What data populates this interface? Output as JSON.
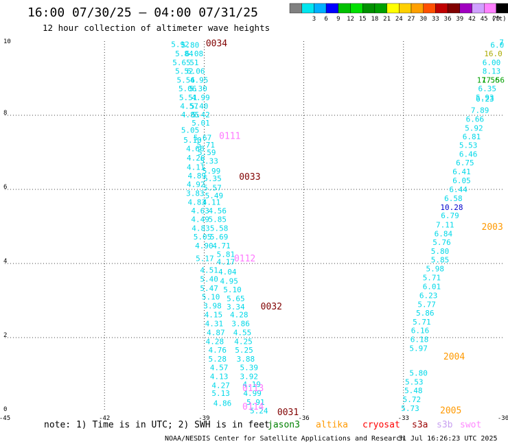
{
  "header": {
    "title": "16:00 07/30/25 — 04:00 07/31/25",
    "subtitle": "12 hour collection of altimeter wave heights"
  },
  "colorbar": {
    "unit": "(ft)",
    "swatches": [
      {
        "label": "",
        "color": "#808080"
      },
      {
        "label": "3",
        "color": "#00e5ee"
      },
      {
        "label": "6",
        "color": "#00b0ff"
      },
      {
        "label": "9",
        "color": "#0000ff"
      },
      {
        "label": "12",
        "color": "#00c000"
      },
      {
        "label": "15",
        "color": "#00e000"
      },
      {
        "label": "18",
        "color": "#009000"
      },
      {
        "label": "21",
        "color": "#00a000"
      },
      {
        "label": "24",
        "color": "#ffff00"
      },
      {
        "label": "27",
        "color": "#ffd000"
      },
      {
        "label": "30",
        "color": "#ffa000"
      },
      {
        "label": "33",
        "color": "#ff5000"
      },
      {
        "label": "36",
        "color": "#c00000"
      },
      {
        "label": "39",
        "color": "#800000"
      },
      {
        "label": "42",
        "color": "#a000c0"
      },
      {
        "label": "45",
        "color": "#d0a0ff"
      },
      {
        "label": "70",
        "color": "#ff80ff"
      },
      {
        "label": "",
        "color": "#000000"
      }
    ]
  },
  "footer": {
    "note": "note: 1) Time is in UTC; 2) SWH is in feet",
    "credit": "NOAA/NESDIS Center for Satellite Applications and Research",
    "timestamp": "31 Jul 16:26:23 UTC 2025"
  },
  "legend": [
    {
      "name": "jason3",
      "color": "#008000"
    },
    {
      "name": "altika",
      "color": "#ff9900"
    },
    {
      "name": "cryosat",
      "color": "#ff0000"
    },
    {
      "name": "s3a",
      "color": "#990000"
    },
    {
      "name": "s3b",
      "color": "#c8a0f0"
    },
    {
      "name": "swot",
      "color": "#ff88ff"
    }
  ],
  "chart_data": {
    "type": "scatter",
    "title": "16:00 07/30/25 — 04:00 07/31/25",
    "subtitle": "12 hour collection of altimeter wave heights",
    "xlabel": "",
    "ylabel": "",
    "xlim": [
      -45,
      -30
    ],
    "ylim": [
      0,
      10
    ],
    "xticks": [
      "-45",
      "-42",
      "-39",
      "-36",
      "-33",
      "-30"
    ],
    "yticks": [
      "0",
      "2",
      "4",
      "6",
      "8",
      "10"
    ],
    "grid": true,
    "legend_position": "bottom",
    "default_color": "#00d8e8",
    "points": [
      {
        "lon": -39.72,
        "lat": 9.92,
        "v": "5.92"
      },
      {
        "lon": -39.42,
        "lat": 9.9,
        "v": "5.80"
      },
      {
        "lon": -39.6,
        "lat": 9.67,
        "v": "5.84"
      },
      {
        "lon": -39.3,
        "lat": 9.67,
        "v": "6.08"
      },
      {
        "lon": -39.68,
        "lat": 9.43,
        "v": "5.65"
      },
      {
        "lon": -39.3,
        "lat": 9.43,
        "v": "51"
      },
      {
        "lon": -39.6,
        "lat": 9.19,
        "v": "5.52"
      },
      {
        "lon": -39.25,
        "lat": 9.19,
        "v": "6.06"
      },
      {
        "lon": -39.55,
        "lat": 8.95,
        "v": "5.56"
      },
      {
        "lon": -39.15,
        "lat": 8.95,
        "v": "4.95"
      },
      {
        "lon": -39.5,
        "lat": 8.72,
        "v": "5.06"
      },
      {
        "lon": -39.18,
        "lat": 8.72,
        "v": "5.30"
      },
      {
        "lon": -39.48,
        "lat": 8.48,
        "v": "5.51"
      },
      {
        "lon": -39.1,
        "lat": 8.48,
        "v": "4.99"
      },
      {
        "lon": -39.45,
        "lat": 8.25,
        "v": "4.57"
      },
      {
        "lon": -39.15,
        "lat": 8.25,
        "v": "5.40"
      },
      {
        "lon": -39.42,
        "lat": 8.02,
        "v": "4.85"
      },
      {
        "lon": -39.1,
        "lat": 8.02,
        "v": "5.42"
      },
      {
        "lon": -39.1,
        "lat": 7.8,
        "v": "5.01"
      },
      {
        "lon": -39.42,
        "lat": 7.6,
        "v": "5.05"
      },
      {
        "lon": -39.05,
        "lat": 7.4,
        "v": "5.67"
      },
      {
        "lon": -39.35,
        "lat": 7.33,
        "v": "5.10"
      },
      {
        "lon": -38.95,
        "lat": 7.2,
        "v": "5.71"
      },
      {
        "lon": -39.27,
        "lat": 7.1,
        "v": "4.66"
      },
      {
        "lon": -38.92,
        "lat": 7.0,
        "v": "5.59"
      },
      {
        "lon": -39.25,
        "lat": 6.85,
        "v": "4.26"
      },
      {
        "lon": -38.85,
        "lat": 6.77,
        "v": "5.33"
      },
      {
        "lon": -39.25,
        "lat": 6.6,
        "v": "4.11"
      },
      {
        "lon": -38.78,
        "lat": 6.5,
        "v": "5.99"
      },
      {
        "lon": -39.22,
        "lat": 6.37,
        "v": "4.89"
      },
      {
        "lon": -38.75,
        "lat": 6.3,
        "v": "5.35"
      },
      {
        "lon": -39.25,
        "lat": 6.14,
        "v": "4.92"
      },
      {
        "lon": -38.75,
        "lat": 6.05,
        "v": "5.57"
      },
      {
        "lon": -39.27,
        "lat": 5.9,
        "v": "3.83"
      },
      {
        "lon": -38.7,
        "lat": 5.83,
        "v": "5.49"
      },
      {
        "lon": -39.22,
        "lat": 5.66,
        "v": "4.83"
      },
      {
        "lon": -38.78,
        "lat": 5.66,
        "v": "4.11"
      },
      {
        "lon": -39.12,
        "lat": 5.43,
        "v": "4.63"
      },
      {
        "lon": -38.6,
        "lat": 5.43,
        "v": "4.56"
      },
      {
        "lon": -39.12,
        "lat": 5.19,
        "v": "4.49"
      },
      {
        "lon": -38.6,
        "lat": 5.19,
        "v": "5.85"
      },
      {
        "lon": -39.1,
        "lat": 4.95,
        "v": "4.83"
      },
      {
        "lon": -38.55,
        "lat": 4.95,
        "v": "5.58"
      },
      {
        "lon": -39.05,
        "lat": 4.72,
        "v": "5.05"
      },
      {
        "lon": -38.55,
        "lat": 4.72,
        "v": "5.69"
      },
      {
        "lon": -39.0,
        "lat": 4.48,
        "v": "4.90"
      },
      {
        "lon": -38.48,
        "lat": 4.48,
        "v": "4.71"
      },
      {
        "lon": -38.35,
        "lat": 4.25,
        "v": "5.81"
      },
      {
        "lon": -38.98,
        "lat": 4.14,
        "v": "5.17"
      },
      {
        "lon": -38.35,
        "lat": 4.05,
        "v": "4.17"
      },
      {
        "lon": -38.85,
        "lat": 3.82,
        "v": "4.51"
      },
      {
        "lon": -38.3,
        "lat": 3.78,
        "v": "4.04"
      },
      {
        "lon": -38.85,
        "lat": 3.58,
        "v": "5.40"
      },
      {
        "lon": -38.25,
        "lat": 3.53,
        "v": "4.95"
      },
      {
        "lon": -38.85,
        "lat": 3.33,
        "v": "5.47"
      },
      {
        "lon": -38.15,
        "lat": 3.3,
        "v": "5.10"
      },
      {
        "lon": -38.8,
        "lat": 3.1,
        "v": "5.10"
      },
      {
        "lon": -38.05,
        "lat": 3.06,
        "v": "5.65"
      },
      {
        "lon": -38.75,
        "lat": 2.86,
        "v": "3.98"
      },
      {
        "lon": -38.05,
        "lat": 2.83,
        "v": "3.34"
      },
      {
        "lon": -38.72,
        "lat": 2.62,
        "v": "4.15"
      },
      {
        "lon": -37.95,
        "lat": 2.62,
        "v": "4.28"
      },
      {
        "lon": -38.7,
        "lat": 2.38,
        "v": "4.31"
      },
      {
        "lon": -37.9,
        "lat": 2.38,
        "v": "3.86"
      },
      {
        "lon": -38.65,
        "lat": 2.14,
        "v": "4.87"
      },
      {
        "lon": -37.85,
        "lat": 2.14,
        "v": "4.55"
      },
      {
        "lon": -38.68,
        "lat": 1.9,
        "v": "4.28"
      },
      {
        "lon": -37.82,
        "lat": 1.9,
        "v": "4.25"
      },
      {
        "lon": -38.6,
        "lat": 1.67,
        "v": "4.76"
      },
      {
        "lon": -37.8,
        "lat": 1.67,
        "v": "5.25"
      },
      {
        "lon": -38.6,
        "lat": 1.43,
        "v": "5.28"
      },
      {
        "lon": -37.75,
        "lat": 1.43,
        "v": "3.88"
      },
      {
        "lon": -38.55,
        "lat": 1.19,
        "v": "4.57"
      },
      {
        "lon": -37.65,
        "lat": 1.19,
        "v": "5.39"
      },
      {
        "lon": -38.55,
        "lat": 0.95,
        "v": "4.13"
      },
      {
        "lon": -37.65,
        "lat": 0.95,
        "v": "3.92"
      },
      {
        "lon": -37.57,
        "lat": 0.74,
        "v": "4.19"
      },
      {
        "lon": -38.5,
        "lat": 0.71,
        "v": "4.27"
      },
      {
        "lon": -37.55,
        "lat": 0.5,
        "v": "4.99"
      },
      {
        "lon": -38.5,
        "lat": 0.5,
        "v": "5.13"
      },
      {
        "lon": -37.45,
        "lat": 0.26,
        "v": "5.91"
      },
      {
        "lon": -38.45,
        "lat": 0.23,
        "v": "4.86"
      },
      {
        "lon": -37.35,
        "lat": 0.03,
        "v": "5.24"
      },
      {
        "lon": -30.18,
        "lat": 9.9,
        "v": "6.0"
      },
      {
        "lon": -30.05,
        "lat": 9.97,
        "v": "7"
      },
      {
        "lon": -30.35,
        "lat": 9.43,
        "v": "6.00"
      },
      {
        "lon": -30.35,
        "lat": 9.19,
        "v": "8.13"
      },
      {
        "lon": -30.45,
        "lat": 8.95,
        "v": "17.56",
        "color": "#00a000"
      },
      {
        "lon": -30.48,
        "lat": 8.72,
        "v": "6.35"
      },
      {
        "lon": -30.55,
        "lat": 8.48,
        "v": "5.93"
      },
      {
        "lon": -30.55,
        "lat": 8.44,
        "v": "6.23"
      },
      {
        "lon": -30.7,
        "lat": 8.14,
        "v": "7.89"
      },
      {
        "lon": -30.85,
        "lat": 7.9,
        "v": "6.66"
      },
      {
        "lon": -30.88,
        "lat": 7.66,
        "v": "5.92"
      },
      {
        "lon": -30.95,
        "lat": 7.43,
        "v": "6.81"
      },
      {
        "lon": -31.05,
        "lat": 7.19,
        "v": "5.53"
      },
      {
        "lon": -31.05,
        "lat": 6.95,
        "v": "6.46"
      },
      {
        "lon": -31.15,
        "lat": 6.72,
        "v": "6.75"
      },
      {
        "lon": -31.25,
        "lat": 6.48,
        "v": "6.41"
      },
      {
        "lon": -31.25,
        "lat": 6.24,
        "v": "6.05"
      },
      {
        "lon": -31.35,
        "lat": 6.0,
        "v": "6.44"
      },
      {
        "lon": -31.5,
        "lat": 5.76,
        "v": "6.58"
      },
      {
        "lon": -31.55,
        "lat": 5.52,
        "v": "10.28",
        "color": "#0000cc"
      },
      {
        "lon": -31.6,
        "lat": 5.3,
        "v": "6.79"
      },
      {
        "lon": -31.75,
        "lat": 5.05,
        "v": "7.11"
      },
      {
        "lon": -31.8,
        "lat": 4.81,
        "v": "6.84"
      },
      {
        "lon": -31.85,
        "lat": 4.57,
        "v": "5.76"
      },
      {
        "lon": -31.9,
        "lat": 4.33,
        "v": "5.80"
      },
      {
        "lon": -31.9,
        "lat": 4.1,
        "v": "5.85"
      },
      {
        "lon": -32.05,
        "lat": 3.86,
        "v": "5.98"
      },
      {
        "lon": -32.15,
        "lat": 3.62,
        "v": "5.71"
      },
      {
        "lon": -32.15,
        "lat": 3.38,
        "v": "6.01"
      },
      {
        "lon": -32.25,
        "lat": 3.14,
        "v": "6.23"
      },
      {
        "lon": -32.3,
        "lat": 2.9,
        "v": "5.77"
      },
      {
        "lon": -32.35,
        "lat": 2.67,
        "v": "5.86"
      },
      {
        "lon": -32.45,
        "lat": 2.43,
        "v": "5.71"
      },
      {
        "lon": -32.5,
        "lat": 2.19,
        "v": "6.16"
      },
      {
        "lon": -32.52,
        "lat": 1.95,
        "v": "6.18"
      },
      {
        "lon": -32.55,
        "lat": 1.71,
        "v": "5.97"
      },
      {
        "lon": -32.55,
        "lat": 1.05,
        "v": "5.80"
      },
      {
        "lon": -32.68,
        "lat": 0.81,
        "v": "5.53"
      },
      {
        "lon": -32.7,
        "lat": 0.57,
        "v": "5.48"
      },
      {
        "lon": -32.75,
        "lat": 0.33,
        "v": "5.72"
      },
      {
        "lon": -32.8,
        "lat": 0.09,
        "v": "5.73"
      }
    ],
    "extra_labels": [
      {
        "lon": -30.3,
        "lat": 9.67,
        "v": "16.0",
        "color": "#aaaa00"
      },
      {
        "lon": -30.3,
        "lat": 8.95,
        "v": "17.56",
        "color": "#00a000"
      }
    ],
    "pass_labels": [
      {
        "lon": -38.95,
        "lat": 9.95,
        "text": "0034",
        "color": "#800000"
      },
      {
        "lon": -38.55,
        "lat": 7.45,
        "text": "0111",
        "color": "#ff77ff"
      },
      {
        "lon": -37.95,
        "lat": 6.35,
        "text": "0033",
        "color": "#800000"
      },
      {
        "lon": -38.1,
        "lat": 4.15,
        "text": "0112",
        "color": "#ff77ff"
      },
      {
        "lon": -37.3,
        "lat": 2.85,
        "text": "0032",
        "color": "#800000"
      },
      {
        "lon": -37.85,
        "lat": 0.65,
        "text": "0113",
        "color": "#ff77ff"
      },
      {
        "lon": -37.85,
        "lat": 0.15,
        "text": "0114",
        "color": "#ff77ff"
      },
      {
        "lon": -36.8,
        "lat": 0.0,
        "text": "0031",
        "color": "#800000"
      },
      {
        "lon": -30.65,
        "lat": 5.0,
        "text": "2003",
        "color": "#ff9900"
      },
      {
        "lon": -31.8,
        "lat": 1.5,
        "text": "2004",
        "color": "#ff9900"
      },
      {
        "lon": -31.9,
        "lat": 0.05,
        "text": "2005",
        "color": "#ff9900"
      }
    ]
  }
}
